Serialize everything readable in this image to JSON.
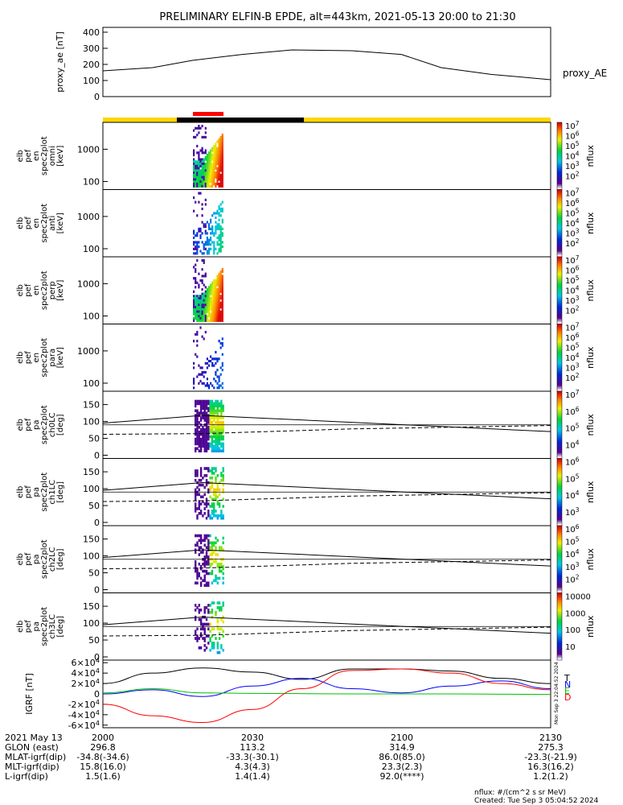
{
  "title": "PRELIMINARY ELFIN-B EPDE, alt=443km, 2021-05-13 20:00 to 21:30",
  "proxy_ae_label": "proxy_AE",
  "nflux_label": "nflux",
  "footer": {
    "units": "nflux: #/(cm^2 s sr MeV)",
    "created": "Created: Tue Sep  3 05:04:52 2024",
    "side_stamp": "Mon Sep  3 22:04:52 2024"
  },
  "orbit_table": {
    "rows": [
      {
        "label": "2021 May 13",
        "values": [
          "2000",
          "2030",
          "2100",
          "2130"
        ]
      },
      {
        "label": "GLON (east)",
        "values": [
          "296.8",
          "113.2",
          "314.9",
          "275.3"
        ]
      },
      {
        "label": "MLAT-igrf(dip)",
        "values": [
          "-34.8(-34.6)",
          "-33.3(-30.1)",
          "86.0(85.0)",
          "-23.3(-21.9)"
        ]
      },
      {
        "label": "MLT-igrf(dip)",
        "values": [
          "15.8(16.0)",
          "4.3(4.3)",
          "23.3(2.3)",
          "16.3(16.2)"
        ]
      },
      {
        "label": "L-igrf(dip)",
        "values": [
          "1.5(1.6)",
          "1.4(1.4)",
          "92.0(****)",
          "1.2(1.2)"
        ]
      }
    ]
  },
  "colors": {
    "sci_bar": "#ff0000",
    "yellow_bar": "#ffd700",
    "black_bar": "#000000",
    "igrf_t": "#000000",
    "igrf_n": "#0000ff",
    "igrf_e": "#00c000",
    "igrf_d": "#ff0000"
  },
  "chart_data": [
    {
      "type": "line",
      "name": "proxy_ae",
      "ylabel": "proxy_ae [nT]",
      "yticks": [
        "400",
        "300",
        "200",
        "100",
        "0"
      ],
      "ylim": [
        0,
        400
      ],
      "x_minutes": [
        0,
        10,
        18,
        28,
        38,
        50,
        60,
        68,
        78,
        90
      ],
      "values": [
        160,
        180,
        225,
        262,
        290,
        285,
        262,
        180,
        138,
        105
      ]
    },
    {
      "type": "heatmap",
      "name": "spectrograms",
      "panels": [
        {
          "ylabel": [
            "elb",
            "pef",
            "en",
            "spec2plot",
            "omni",
            "[keV]"
          ],
          "yticks": [
            "1000",
            "100"
          ],
          "cbar_ticks": [
            "10^7",
            "10^6",
            "10^5",
            "10^4",
            "10^3",
            "10^2"
          ],
          "intensity": 1.0
        },
        {
          "ylabel": [
            "elb",
            "pef",
            "en",
            "spec2plot",
            "anti",
            "[keV]"
          ],
          "yticks": [
            "1000",
            "100"
          ],
          "cbar_ticks": [
            "10^7",
            "10^6",
            "10^5",
            "10^4",
            "10^3",
            "10^2"
          ],
          "intensity": 0.5
        },
        {
          "ylabel": [
            "elb",
            "pef",
            "en",
            "spec2plot",
            "perp",
            "[keV]"
          ],
          "yticks": [
            "1000",
            "100"
          ],
          "cbar_ticks": [
            "10^7",
            "10^6",
            "10^5",
            "10^4",
            "10^3",
            "10^2"
          ],
          "intensity": 1.0
        },
        {
          "ylabel": [
            "elb",
            "pef",
            "en",
            "spec2plot",
            "para",
            "[keV]"
          ],
          "yticks": [
            "1000",
            "100"
          ],
          "cbar_ticks": [
            "10^7",
            "10^6",
            "10^5",
            "10^4",
            "10^3",
            "10^2"
          ],
          "intensity": 0.3
        }
      ]
    },
    {
      "type": "heatmap",
      "name": "pitch_angle",
      "panels": [
        {
          "ylabel": [
            "elb",
            "pef",
            "pa",
            "spec2plot",
            "ch0LC",
            "[deg]"
          ],
          "yticks": [
            "150",
            "100",
            "50",
            "0"
          ],
          "cbar_ticks": [
            "10^7",
            "10^6",
            "10^5",
            "10^4"
          ]
        },
        {
          "ylabel": [
            "elb",
            "pef",
            "pa",
            "spec2plot",
            "ch1LC",
            "[deg]"
          ],
          "yticks": [
            "150",
            "100",
            "50",
            "0"
          ],
          "cbar_ticks": [
            "10^6",
            "10^5",
            "10^4",
            "10^3"
          ]
        },
        {
          "ylabel": [
            "elb",
            "pef",
            "pa",
            "spec2plot",
            "ch2LC",
            "[deg]"
          ],
          "yticks": [
            "150",
            "100",
            "50",
            "0"
          ],
          "cbar_ticks": [
            "10^6",
            "10^5",
            "10^4",
            "10^3",
            "10^2"
          ]
        },
        {
          "ylabel": [
            "elb",
            "pef",
            "pa",
            "spec2plot",
            "ch3LC",
            "[deg]"
          ],
          "yticks": [
            "150",
            "100",
            "50",
            "0"
          ],
          "cbar_ticks": [
            "10000",
            "1000",
            "100",
            "10"
          ]
        }
      ]
    },
    {
      "type": "line",
      "name": "igrf",
      "ylabel": "IGRF [nT]",
      "yticks": [
        "6×10^4",
        "4×10^4",
        "2×10^4",
        "0",
        "-2×10^4",
        "-4×10^4",
        "-6×10^4"
      ],
      "ylim": [
        -65000,
        65000
      ],
      "legend": [
        "T",
        "N",
        "E",
        "D"
      ],
      "x_minutes": [
        0,
        10,
        20,
        30,
        40,
        50,
        60,
        70,
        80,
        90
      ],
      "series": [
        {
          "name": "T",
          "values": [
            20000,
            40000,
            50000,
            42000,
            28000,
            48000,
            48000,
            44000,
            30000,
            20000
          ]
        },
        {
          "name": "N",
          "values": [
            0,
            8000,
            -5000,
            15000,
            30000,
            10000,
            2000,
            15000,
            25000,
            10000
          ]
        },
        {
          "name": "E",
          "values": [
            2000,
            10000,
            2000,
            1000,
            500,
            0,
            0,
            0,
            -500,
            -1000
          ]
        },
        {
          "name": "D",
          "values": [
            -20000,
            -42000,
            -55000,
            -30000,
            10000,
            45000,
            48000,
            40000,
            20000,
            8000
          ]
        }
      ]
    }
  ]
}
